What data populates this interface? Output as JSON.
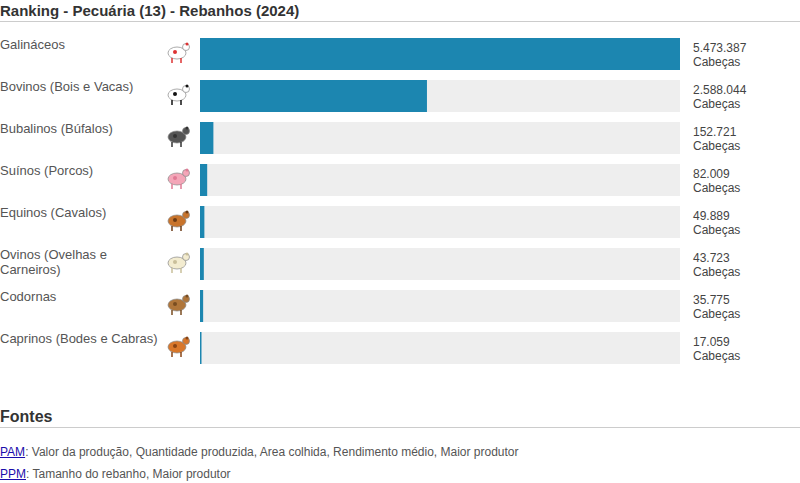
{
  "title": "Ranking - Pecuária (13) - Rebanhos (2024)",
  "chart_data": {
    "type": "bar",
    "orientation": "horizontal",
    "categories": [
      "Galináceos",
      "Bovinos (Bois e Vacas)",
      "Bubalinos (Búfalos)",
      "Suínos (Porcos)",
      "Equinos (Cavalos)",
      "Ovinos (Ovelhas e Carneiros)",
      "Codornas",
      "Caprinos (Bodes e Cabras)"
    ],
    "values": [
      5473387,
      2588044,
      152721,
      82009,
      49889,
      43723,
      35775,
      17059
    ],
    "value_labels": [
      "5.473.387",
      "2.588.044",
      "152.721",
      "82.009",
      "49.889",
      "43.723",
      "35.775",
      "17.059"
    ],
    "value_unit": "Cabeças",
    "color": "#1c86b0",
    "xlim": [
      0,
      5473387
    ],
    "tick_labels": false,
    "data_labels": true,
    "grid": false
  },
  "footer": {
    "title": "Fontes",
    "items": [
      {
        "link": "PAM",
        "text": ": Valor da produção, Quantidade produzida, Area colhida, Rendimento médio, Maior produtor"
      },
      {
        "link": "PPM",
        "text": ": Tamanho do rebanho, Maior produtor"
      }
    ]
  }
}
